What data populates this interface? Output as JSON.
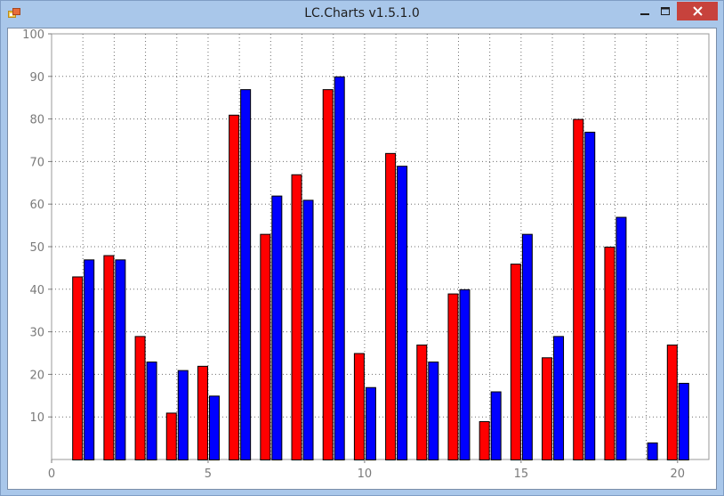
{
  "window": {
    "title": "LC.Charts v1.5.1.0",
    "icons": {
      "app": "app-icon",
      "minimize": "minimize-icon",
      "maximize": "maximize-icon",
      "close": "close-icon"
    },
    "colors": {
      "frame": "#a9c7ea",
      "close_button": "#c7423c"
    }
  },
  "chart_data": {
    "type": "bar",
    "title": "",
    "xlabel": "",
    "ylabel": "",
    "x": [
      1,
      2,
      3,
      4,
      5,
      6,
      7,
      8,
      9,
      10,
      11,
      12,
      13,
      14,
      15,
      16,
      17,
      18,
      19,
      20
    ],
    "series": [
      {
        "color": "#ff0000",
        "values": [
          43,
          48,
          29,
          11,
          22,
          81,
          53,
          67,
          87,
          25,
          72,
          27,
          39,
          9,
          46,
          24,
          80,
          50,
          0,
          27
        ]
      },
      {
        "color": "#0000ff",
        "values": [
          47,
          47,
          23,
          21,
          15,
          87,
          62,
          61,
          90,
          17,
          69,
          23,
          40,
          16,
          53,
          29,
          77,
          57,
          4,
          18
        ]
      }
    ],
    "xlim": [
      0,
      21
    ],
    "ylim": [
      0,
      100
    ],
    "x_ticks": [
      "0",
      "5",
      "10",
      "15",
      "20"
    ],
    "x_tick_values": [
      0,
      5,
      10,
      15,
      20
    ],
    "y_ticks": [
      "10",
      "20",
      "30",
      "40",
      "50",
      "60",
      "70",
      "80",
      "90",
      "100"
    ],
    "y_tick_values": [
      10,
      20,
      30,
      40,
      50,
      60,
      70,
      80,
      90,
      100
    ],
    "grid": true
  }
}
